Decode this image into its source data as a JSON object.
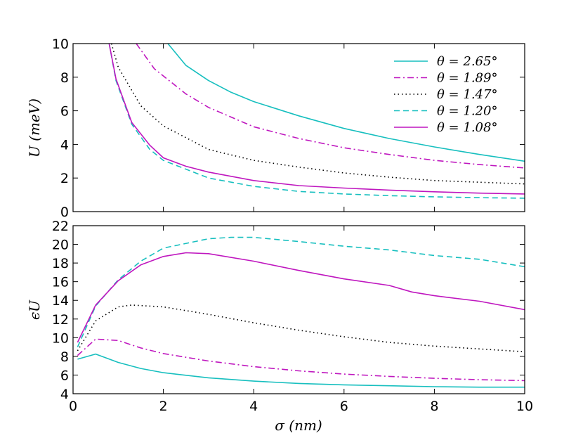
{
  "chart_data": [
    {
      "type": "line",
      "panel": "top",
      "ylabel": "U (meV)",
      "xlabel": "",
      "xlim": [
        0,
        10
      ],
      "ylim": [
        0,
        10
      ],
      "xticks": [
        "0",
        "2",
        "4",
        "6",
        "8",
        "10"
      ],
      "yticks": [
        "0",
        "2",
        "4",
        "6",
        "8",
        "10"
      ],
      "legend_position": "top-right",
      "series": [
        {
          "name": "θ = 2.65°",
          "color": "#17bfbf",
          "style": "solid",
          "points": [
            [
              2.1,
              10.0
            ],
            [
              2.5,
              8.7
            ],
            [
              3.0,
              7.8
            ],
            [
              3.5,
              7.1
            ],
            [
              4.0,
              6.55
            ],
            [
              5.0,
              5.7
            ],
            [
              6.0,
              4.95
            ],
            [
              7.0,
              4.35
            ],
            [
              8.0,
              3.85
            ],
            [
              9.0,
              3.4
            ],
            [
              10.0,
              3.0
            ]
          ]
        },
        {
          "name": "θ = 1.89°",
          "color": "#bf17bf",
          "style": "dashdot",
          "points": [
            [
              1.4,
              10.0
            ],
            [
              1.8,
              8.5
            ],
            [
              2.5,
              7.0
            ],
            [
              3.0,
              6.2
            ],
            [
              4.0,
              5.05
            ],
            [
              5.0,
              4.35
            ],
            [
              6.0,
              3.8
            ],
            [
              7.0,
              3.4
            ],
            [
              8.0,
              3.05
            ],
            [
              9.0,
              2.8
            ],
            [
              10.0,
              2.6
            ]
          ]
        },
        {
          "name": "θ = 1.47°",
          "color": "#000000",
          "style": "dotted",
          "points": [
            [
              0.85,
              10.0
            ],
            [
              1.0,
              8.6
            ],
            [
              1.5,
              6.3
            ],
            [
              2.0,
              5.1
            ],
            [
              3.0,
              3.7
            ],
            [
              4.0,
              3.05
            ],
            [
              5.0,
              2.65
            ],
            [
              6.0,
              2.3
            ],
            [
              7.0,
              2.05
            ],
            [
              8.0,
              1.85
            ],
            [
              9.0,
              1.75
            ],
            [
              10.0,
              1.65
            ]
          ]
        },
        {
          "name": "θ = 1.20°",
          "color": "#17bfbf",
          "style": "dashed",
          "points": [
            [
              0.8,
              10.0
            ],
            [
              0.95,
              7.8
            ],
            [
              1.3,
              5.2
            ],
            [
              1.7,
              3.7
            ],
            [
              2.0,
              3.05
            ],
            [
              3.0,
              2.0
            ],
            [
              4.0,
              1.5
            ],
            [
              5.0,
              1.2
            ],
            [
              6.0,
              1.05
            ],
            [
              7.0,
              0.95
            ],
            [
              8.0,
              0.88
            ],
            [
              9.0,
              0.83
            ],
            [
              10.0,
              0.8
            ]
          ]
        },
        {
          "name": "θ = 1.08°",
          "color": "#bf17bf",
          "style": "solid",
          "points": [
            [
              0.8,
              10.0
            ],
            [
              0.95,
              7.9
            ],
            [
              1.3,
              5.3
            ],
            [
              1.7,
              3.95
            ],
            [
              2.0,
              3.2
            ],
            [
              2.5,
              2.7
            ],
            [
              3.0,
              2.35
            ],
            [
              4.0,
              1.85
            ],
            [
              5.0,
              1.55
            ],
            [
              6.0,
              1.4
            ],
            [
              7.0,
              1.28
            ],
            [
              8.0,
              1.18
            ],
            [
              9.0,
              1.1
            ],
            [
              10.0,
              1.05
            ]
          ]
        }
      ]
    },
    {
      "type": "line",
      "panel": "bottom",
      "ylabel": "ϵU",
      "xlabel": "σ (nm)",
      "xlim": [
        0,
        10
      ],
      "ylim": [
        4,
        22
      ],
      "xticks": [
        "0",
        "2",
        "4",
        "6",
        "8",
        "10"
      ],
      "yticks": [
        "4",
        "6",
        "8",
        "10",
        "12",
        "14",
        "16",
        "18",
        "20",
        "22"
      ],
      "series": [
        {
          "name": "θ = 2.65°",
          "color": "#17bfbf",
          "style": "solid",
          "points": [
            [
              0.1,
              7.7
            ],
            [
              0.5,
              8.25
            ],
            [
              1.0,
              7.35
            ],
            [
              1.5,
              6.7
            ],
            [
              2.0,
              6.25
            ],
            [
              3.0,
              5.7
            ],
            [
              4.0,
              5.35
            ],
            [
              5.0,
              5.1
            ],
            [
              6.0,
              4.95
            ],
            [
              7.0,
              4.85
            ],
            [
              8.0,
              4.75
            ],
            [
              9.0,
              4.7
            ],
            [
              10.0,
              4.7
            ]
          ]
        },
        {
          "name": "θ = 1.89°",
          "color": "#bf17bf",
          "style": "dashdot",
          "points": [
            [
              0.1,
              8.1
            ],
            [
              0.5,
              9.85
            ],
            [
              1.0,
              9.7
            ],
            [
              1.5,
              8.9
            ],
            [
              2.0,
              8.3
            ],
            [
              3.0,
              7.5
            ],
            [
              4.0,
              6.9
            ],
            [
              5.0,
              6.45
            ],
            [
              6.0,
              6.1
            ],
            [
              7.0,
              5.85
            ],
            [
              8.0,
              5.65
            ],
            [
              9.0,
              5.5
            ],
            [
              10.0,
              5.4
            ]
          ]
        },
        {
          "name": "θ = 1.47°",
          "color": "#000000",
          "style": "dotted",
          "points": [
            [
              0.1,
              8.6
            ],
            [
              0.5,
              11.8
            ],
            [
              1.0,
              13.3
            ],
            [
              1.3,
              13.5
            ],
            [
              2.0,
              13.3
            ],
            [
              3.0,
              12.5
            ],
            [
              4.0,
              11.6
            ],
            [
              5.0,
              10.8
            ],
            [
              6.0,
              10.1
            ],
            [
              7.0,
              9.5
            ],
            [
              8.0,
              9.1
            ],
            [
              9.0,
              8.8
            ],
            [
              10.0,
              8.5
            ]
          ]
        },
        {
          "name": "θ = 1.20°",
          "color": "#17bfbf",
          "style": "dashed",
          "points": [
            [
              0.1,
              9.0
            ],
            [
              0.5,
              13.4
            ],
            [
              1.0,
              16.2
            ],
            [
              1.5,
              18.2
            ],
            [
              2.0,
              19.6
            ],
            [
              3.0,
              20.6
            ],
            [
              3.5,
              20.75
            ],
            [
              4.0,
              20.75
            ],
            [
              5.0,
              20.3
            ],
            [
              6.0,
              19.8
            ],
            [
              7.0,
              19.4
            ],
            [
              8.0,
              18.8
            ],
            [
              9.0,
              18.4
            ],
            [
              9.5,
              18.0
            ],
            [
              10.0,
              17.6
            ]
          ]
        },
        {
          "name": "θ = 1.08°",
          "color": "#bf17bf",
          "style": "solid",
          "points": [
            [
              0.1,
              9.5
            ],
            [
              0.5,
              13.5
            ],
            [
              1.0,
              16.1
            ],
            [
              1.5,
              17.8
            ],
            [
              2.0,
              18.7
            ],
            [
              2.5,
              19.1
            ],
            [
              3.0,
              19.0
            ],
            [
              4.0,
              18.2
            ],
            [
              5.0,
              17.2
            ],
            [
              6.0,
              16.3
            ],
            [
              7.0,
              15.6
            ],
            [
              7.5,
              14.9
            ],
            [
              8.0,
              14.5
            ],
            [
              9.0,
              13.9
            ],
            [
              10.0,
              13.0
            ]
          ]
        }
      ]
    }
  ]
}
